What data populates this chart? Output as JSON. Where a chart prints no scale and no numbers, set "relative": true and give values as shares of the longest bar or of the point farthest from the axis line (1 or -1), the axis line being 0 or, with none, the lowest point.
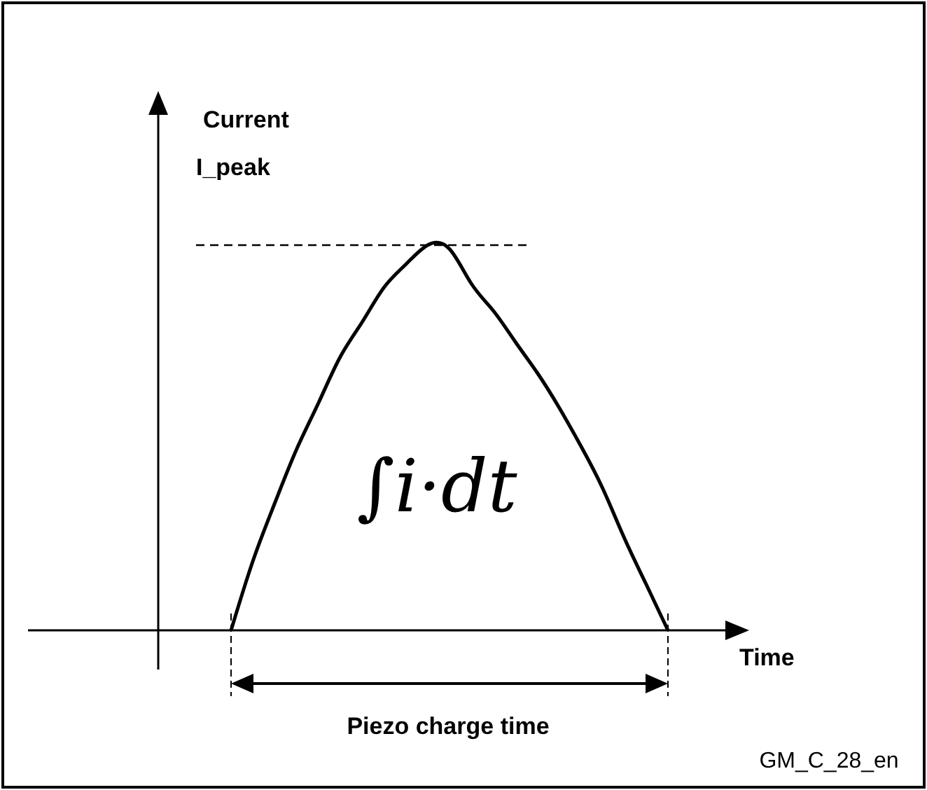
{
  "chart_data": {
    "type": "line",
    "relative": true,
    "xlabel": "Time",
    "ylabel": "Current",
    "categories": [
      null,
      null,
      null,
      null,
      null,
      null,
      null,
      null,
      null,
      null,
      null,
      null,
      null,
      null,
      null,
      null,
      null,
      null,
      null,
      null,
      null
    ],
    "values": [
      0,
      0.18,
      0.33,
      0.47,
      0.59,
      0.71,
      0.8,
      0.89,
      0.95,
      1,
      0.99,
      0.9,
      0.83,
      0.75,
      0.67,
      0.58,
      0.48,
      0.37,
      0.24,
      0.12,
      0
    ],
    "color": "#000000",
    "line_style": "solid",
    "marker": "none",
    "ref_lines": [
      {
        "axis": "y",
        "value": 1,
        "label": "I_peak",
        "line_style": "dashed"
      }
    ],
    "annotations": [
      "∫i·dt",
      "Piezo charge time",
      "GM_C_28_en"
    ]
  }
}
